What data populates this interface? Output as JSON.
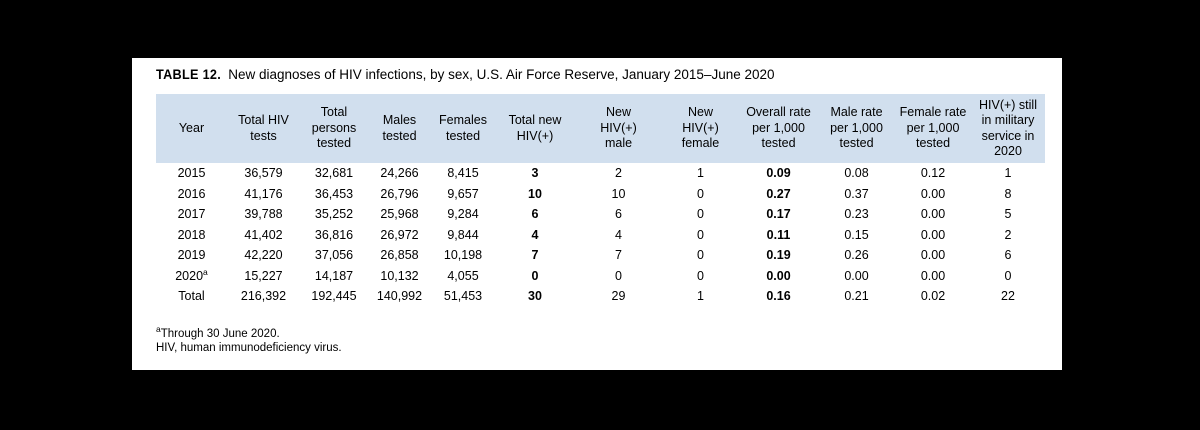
{
  "page": {
    "background_color": "#000000",
    "panel_color": "#ffffff",
    "header_fill_color": "#d1dfee",
    "text_color": "#000000"
  },
  "title": {
    "label": "TABLE 12.",
    "text": "New diagnoses of HIV infections, by sex, U.S. Air Force Reserve, January 2015–June 2020"
  },
  "table": {
    "header_lines": [
      "Year",
      "Total HIV\ntests",
      "Total\npersons\ntested",
      "Males\ntested",
      "Females\ntested",
      "Total new\nHIV(+)",
      "New\nHIV(+)\nmale",
      "New\nHIV(+)\nfemale",
      "Overall rate\nper 1,000\ntested",
      "Male rate\nper 1,000\ntested",
      "Female rate\nper 1,000\ntested",
      "HIV(+) still\nin military\nservice in\n2020"
    ],
    "rows": [
      {
        "year": "2015",
        "year_sup": "",
        "values": [
          "36,579",
          "32,681",
          "24,266",
          "8,415",
          "3",
          "2",
          "1",
          "0.09",
          "0.08",
          "0.12",
          "1"
        ]
      },
      {
        "year": "2016",
        "year_sup": "",
        "values": [
          "41,176",
          "36,453",
          "26,796",
          "9,657",
          "10",
          "10",
          "0",
          "0.27",
          "0.37",
          "0.00",
          "8"
        ]
      },
      {
        "year": "2017",
        "year_sup": "",
        "values": [
          "39,788",
          "35,252",
          "25,968",
          "9,284",
          "6",
          "6",
          "0",
          "0.17",
          "0.23",
          "0.00",
          "5"
        ]
      },
      {
        "year": "2018",
        "year_sup": "",
        "values": [
          "41,402",
          "36,816",
          "26,972",
          "9,844",
          "4",
          "4",
          "0",
          "0.11",
          "0.15",
          "0.00",
          "2"
        ]
      },
      {
        "year": "2019",
        "year_sup": "",
        "values": [
          "42,220",
          "37,056",
          "26,858",
          "10,198",
          "7",
          "7",
          "0",
          "0.19",
          "0.26",
          "0.00",
          "6"
        ]
      },
      {
        "year": "2020",
        "year_sup": "a",
        "values": [
          "15,227",
          "14,187",
          "10,132",
          "4,055",
          "0",
          "0",
          "0",
          "0.00",
          "0.00",
          "0.00",
          "0"
        ]
      },
      {
        "year": "Total",
        "year_sup": "",
        "values": [
          "216,392",
          "192,445",
          "140,992",
          "51,453",
          "30",
          "29",
          "1",
          "0.16",
          "0.21",
          "0.02",
          "22"
        ]
      }
    ]
  },
  "footnotes": [
    {
      "sup": "a",
      "text": "Through 30 June 2020."
    },
    {
      "sup": "",
      "text": "HIV, human immunodeficiency virus."
    }
  ],
  "chart_data": {
    "type": "table",
    "title": "TABLE 12. New diagnoses of HIV infections, by sex, U.S. Air Force Reserve, January 2015–June 2020",
    "columns": [
      "Year",
      "Total HIV tests",
      "Total persons tested",
      "Males tested",
      "Females tested",
      "Total new HIV(+)",
      "New HIV(+) male",
      "New HIV(+) female",
      "Overall rate per 1,000 tested",
      "Male rate per 1,000 tested",
      "Female rate per 1,000 tested",
      "HIV(+) still in military service in 2020"
    ],
    "rows": [
      [
        "2015",
        36579,
        32681,
        24266,
        8415,
        3,
        2,
        1,
        0.09,
        0.08,
        0.12,
        1
      ],
      [
        "2016",
        41176,
        36453,
        26796,
        9657,
        10,
        10,
        0,
        0.27,
        0.37,
        0.0,
        8
      ],
      [
        "2017",
        39788,
        35252,
        25968,
        9284,
        6,
        6,
        0,
        0.17,
        0.23,
        0.0,
        5
      ],
      [
        "2018",
        41402,
        36816,
        26972,
        9844,
        4,
        4,
        0,
        0.11,
        0.15,
        0.0,
        2
      ],
      [
        "2019",
        42220,
        37056,
        26858,
        10198,
        7,
        7,
        0,
        0.19,
        0.26,
        0.0,
        6
      ],
      [
        "2020a",
        15227,
        14187,
        10132,
        4055,
        0,
        0,
        0,
        0.0,
        0.0,
        0.0,
        0
      ],
      [
        "Total",
        216392,
        192445,
        140992,
        51453,
        30,
        29,
        1,
        0.16,
        0.21,
        0.02,
        22
      ]
    ],
    "footnotes": [
      "aThrough 30 June 2020.",
      "HIV, human immunodeficiency virus."
    ]
  }
}
